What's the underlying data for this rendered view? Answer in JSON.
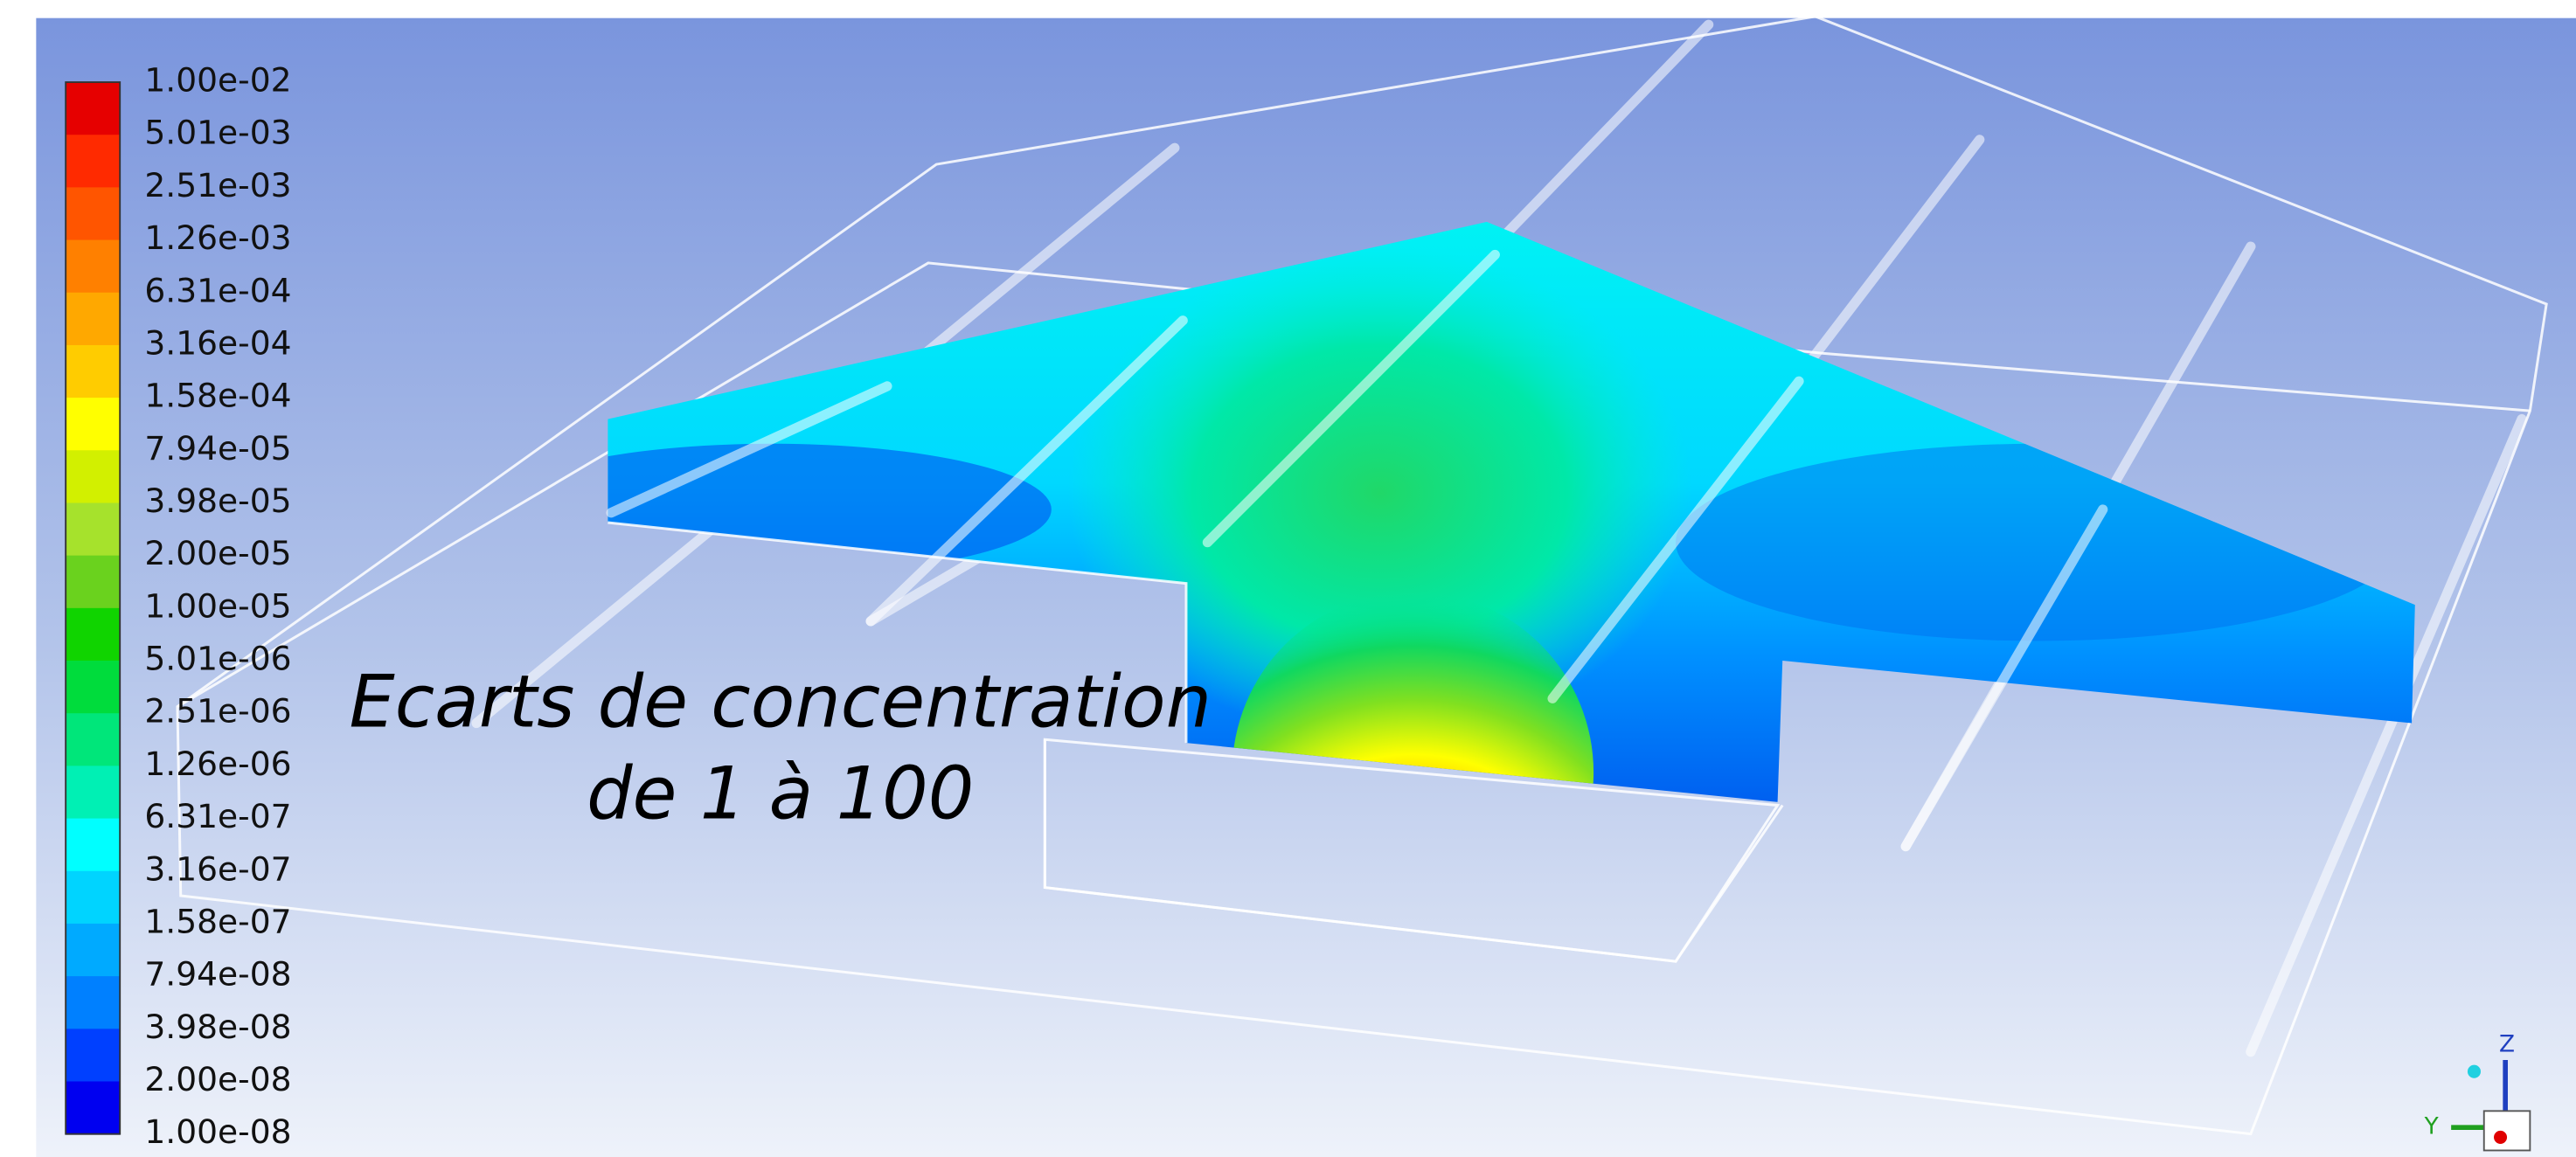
{
  "colorbar": {
    "labels": [
      "1.00e-02",
      "5.01e-03",
      "2.51e-03",
      "1.26e-03",
      "6.31e-04",
      "3.16e-04",
      "1.58e-04",
      "7.94e-05",
      "3.98e-05",
      "2.00e-05",
      "1.00e-05",
      "5.01e-06",
      "2.51e-06",
      "1.26e-06",
      "6.31e-07",
      "3.16e-07",
      "1.58e-07",
      "7.94e-08",
      "3.98e-08",
      "2.00e-08",
      "1.00e-08"
    ],
    "colors": [
      "#e60000",
      "#ff2a00",
      "#ff5500",
      "#ff8000",
      "#ffa800",
      "#ffcc00",
      "#ffff00",
      "#d2f000",
      "#a6e22c",
      "#6ad21e",
      "#10d400",
      "#00dc3c",
      "#00e67a",
      "#00f0b4",
      "#00ffff",
      "#00d4ff",
      "#00aaff",
      "#0080ff",
      "#0040ff",
      "#0000f0"
    ]
  },
  "annotation": {
    "lines": [
      "Ecarts de concentration",
      "de 1 à 100"
    ]
  },
  "triad": {
    "z": "Z",
    "y": "Y"
  }
}
